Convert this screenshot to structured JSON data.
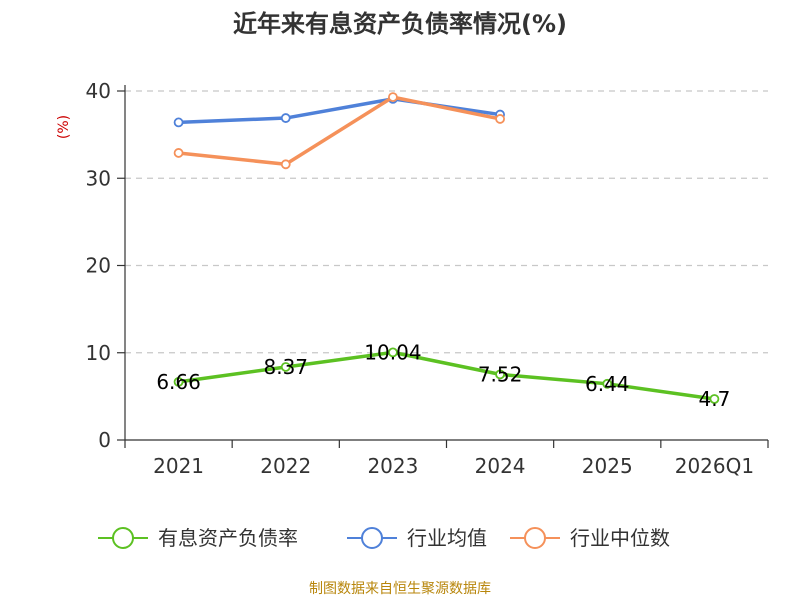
{
  "chart_data": {
    "type": "line",
    "title": "近年来有息资产负债率情况(%)",
    "unit_label": "(%)",
    "categories": [
      "2021",
      "2022",
      "2023",
      "2024",
      "2025",
      "2026Q1"
    ],
    "ylim": [
      0,
      40
    ],
    "yticks": [
      0,
      10,
      20,
      30,
      40
    ],
    "grid": true,
    "legend_position": "bottom",
    "series": [
      {
        "name": "有息资产负债率",
        "color": "#5cc122",
        "values": [
          6.66,
          8.37,
          10.04,
          7.52,
          6.44,
          4.7
        ],
        "labels": [
          "6.66",
          "8.37",
          "10.04",
          "7.52",
          "6.44",
          "4.7"
        ]
      },
      {
        "name": "行业均值",
        "color": "#4f81d9",
        "values": [
          36.4,
          36.9,
          39.1,
          37.3,
          null,
          null
        ]
      },
      {
        "name": "行业中位数",
        "color": "#f5915a",
        "values": [
          32.9,
          31.6,
          39.3,
          36.8,
          null,
          null
        ]
      }
    ],
    "source": "制图数据来自恒生聚源数据库"
  }
}
